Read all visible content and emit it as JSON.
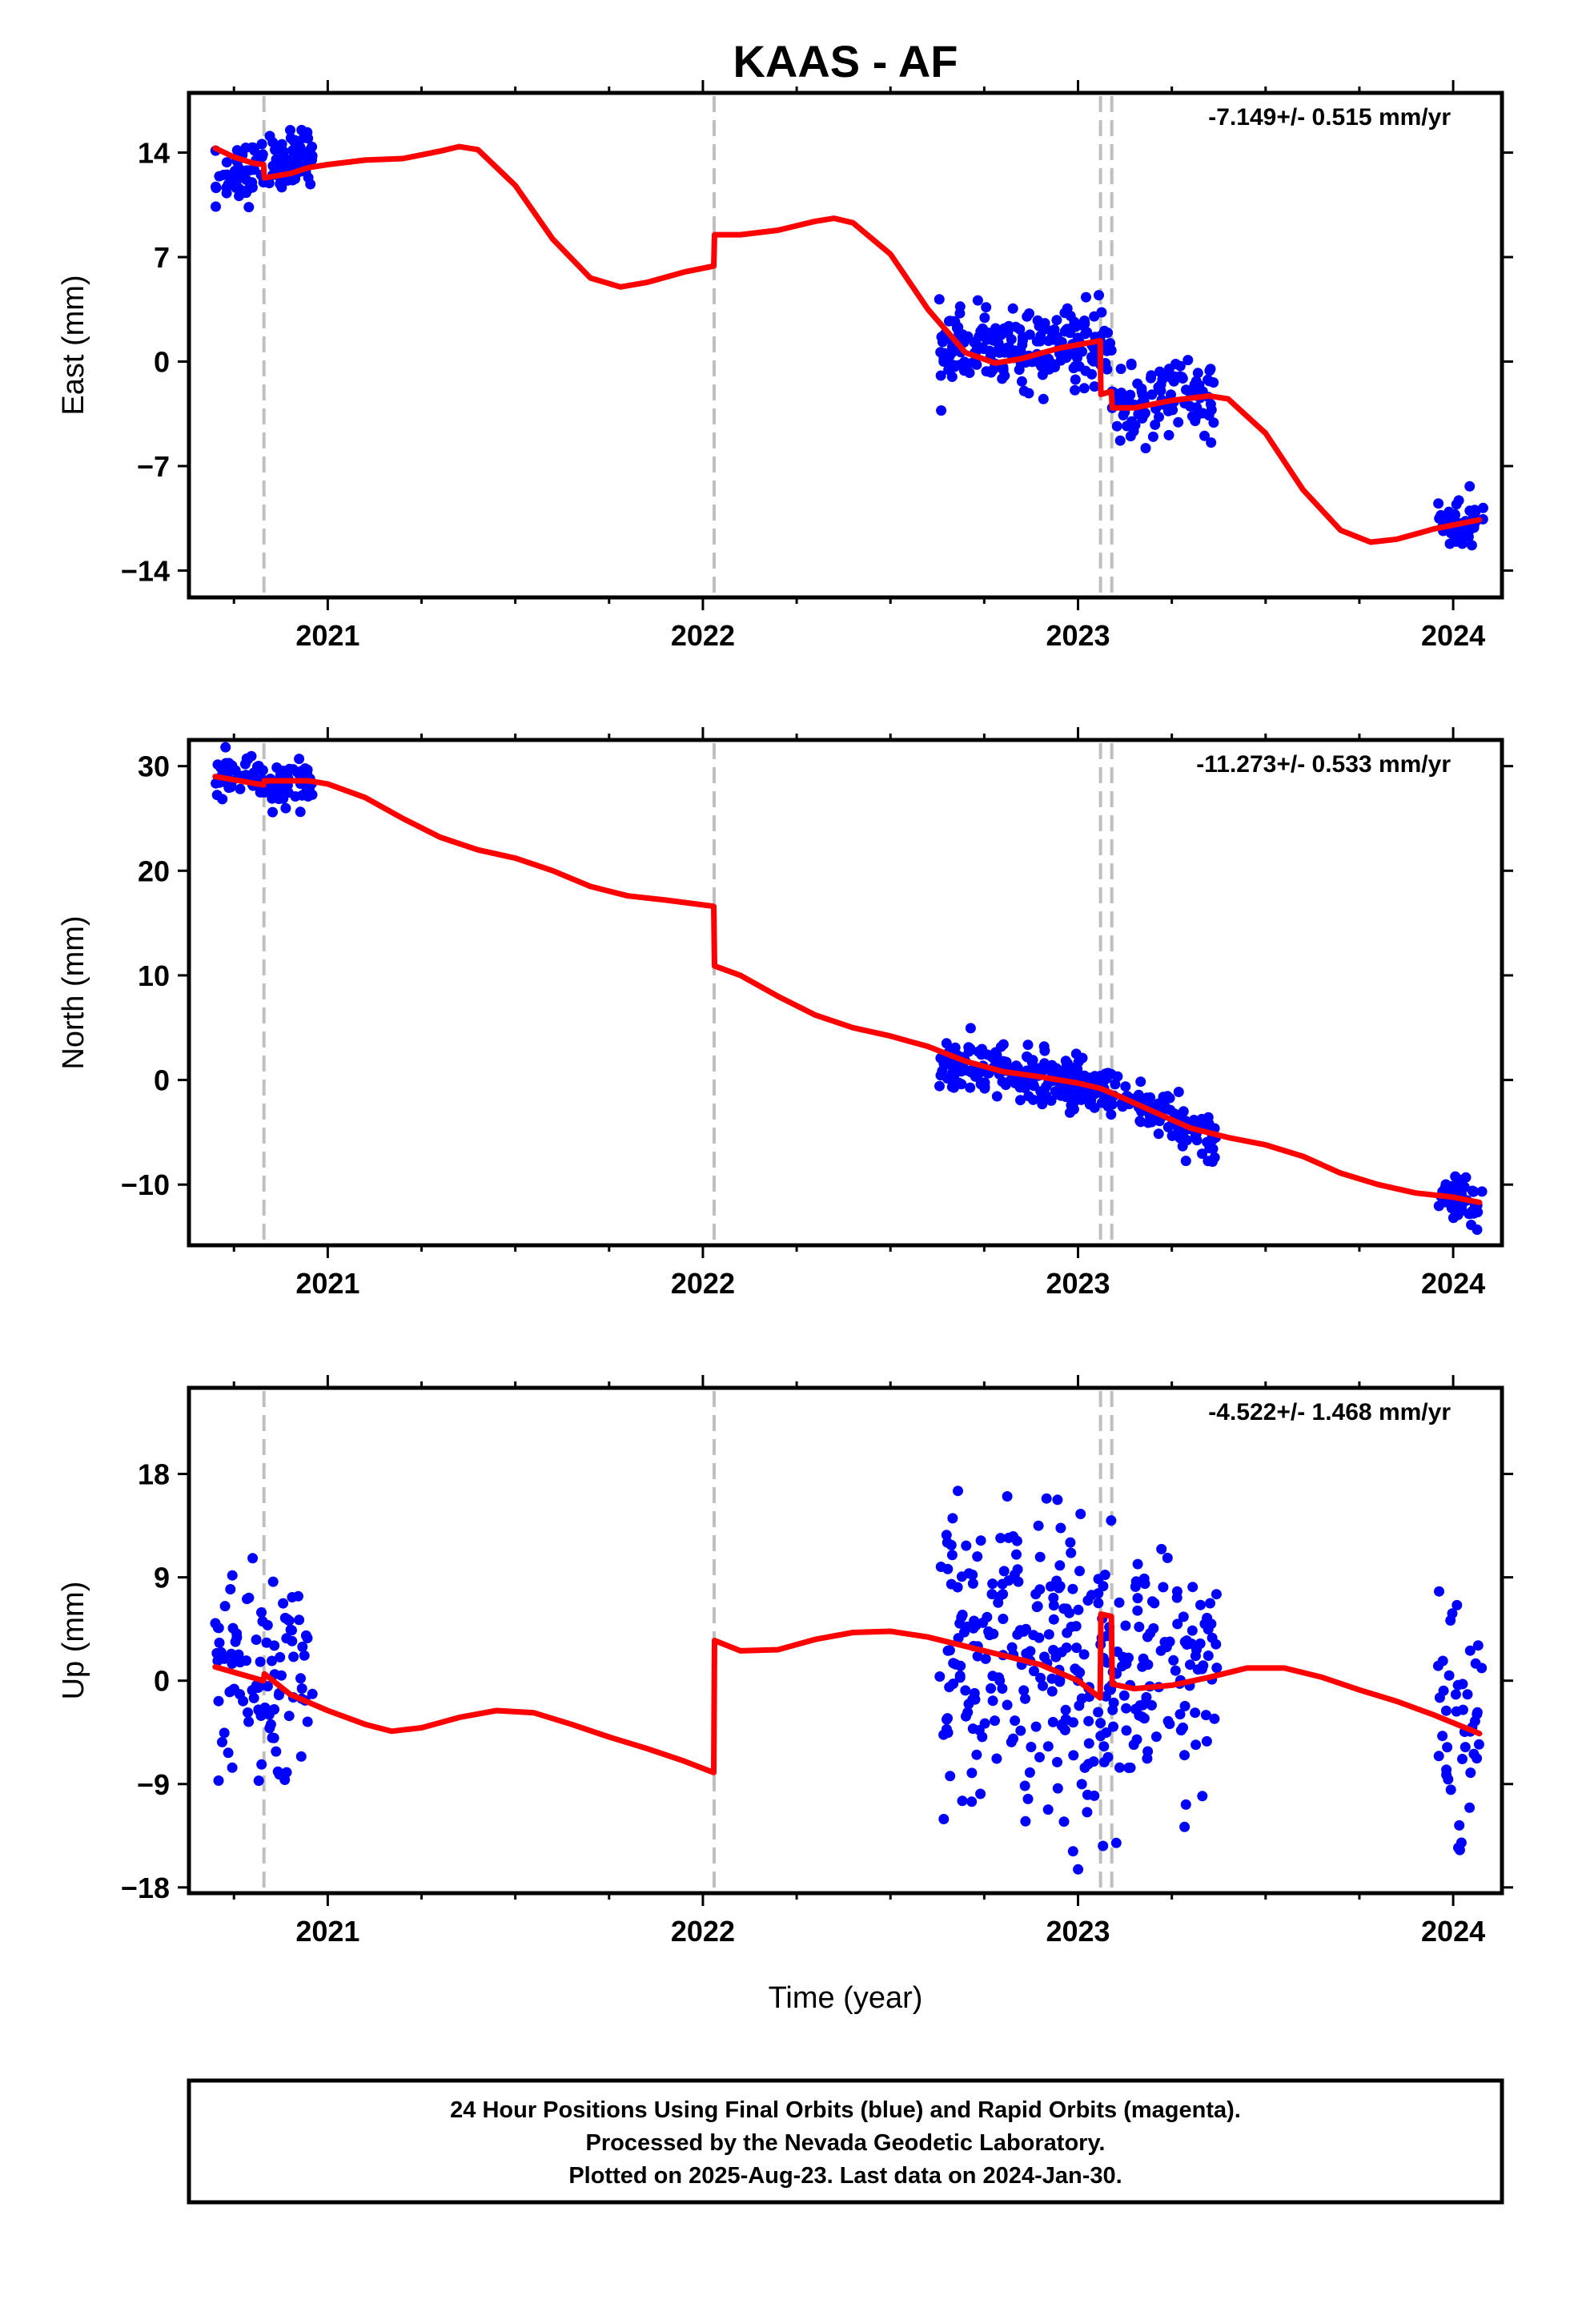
{
  "title": "KAAS - AF",
  "xlabel": "Time (year)",
  "footer": {
    "lines": [
      "24 Hour Positions Using Final Orbits (blue) and Rapid Orbits (magenta).",
      "Processed by the Nevada Geodetic Laboratory.",
      "Plotted on 2025-Aug-23. Last data on 2024-Jan-30."
    ]
  },
  "colors": {
    "data_points": "#0000ff",
    "model_fit": "#ff0000",
    "event_lines": "#bfbfbf",
    "frame": "#000000"
  },
  "chart_data": [
    {
      "type": "scatter",
      "panel": "east",
      "ylabel": "East (mm)",
      "rate_label": "-7.149+/- 0.515 mm/yr",
      "xlim": [
        2020.63,
        2024.13
      ],
      "ylim": [
        -15.8,
        18.0
      ],
      "yticks": [
        -14,
        -7,
        0,
        7,
        14
      ],
      "ytick_labels": [
        "−14",
        "−7",
        "0",
        "7",
        "14"
      ],
      "xticks": [
        2021,
        2022,
        2023,
        2024
      ],
      "xtick_labels": [
        "2021",
        "2022",
        "2023",
        "2024"
      ],
      "event_lines_x": [
        2020.83,
        2022.03,
        2023.06,
        2023.09
      ],
      "model": [
        [
          2020.7,
          14.3
        ],
        [
          2020.75,
          13.7
        ],
        [
          2020.8,
          13.3
        ],
        [
          2020.829,
          13.2
        ],
        [
          2020.831,
          12.3
        ],
        [
          2020.9,
          12.6
        ],
        [
          2020.95,
          13.0
        ],
        [
          2021.0,
          13.2
        ],
        [
          2021.1,
          13.5
        ],
        [
          2021.2,
          13.6
        ],
        [
          2021.3,
          14.1
        ],
        [
          2021.35,
          14.4
        ],
        [
          2021.4,
          14.2
        ],
        [
          2021.5,
          11.8
        ],
        [
          2021.6,
          8.2
        ],
        [
          2021.7,
          5.6
        ],
        [
          2021.78,
          5.0
        ],
        [
          2021.85,
          5.3
        ],
        [
          2021.95,
          6.0
        ],
        [
          2022.029,
          6.4
        ],
        [
          2022.031,
          8.5
        ],
        [
          2022.1,
          8.5
        ],
        [
          2022.2,
          8.8
        ],
        [
          2022.3,
          9.4
        ],
        [
          2022.35,
          9.6
        ],
        [
          2022.4,
          9.3
        ],
        [
          2022.5,
          7.2
        ],
        [
          2022.6,
          3.5
        ],
        [
          2022.7,
          0.6
        ],
        [
          2022.78,
          -0.1
        ],
        [
          2022.85,
          0.2
        ],
        [
          2022.95,
          0.9
        ],
        [
          2023.059,
          1.4
        ],
        [
          2023.061,
          -2.2
        ],
        [
          2023.089,
          -2.0
        ],
        [
          2023.091,
          -3.1
        ],
        [
          2023.15,
          -3.1
        ],
        [
          2023.25,
          -2.6
        ],
        [
          2023.35,
          -2.3
        ],
        [
          2023.4,
          -2.5
        ],
        [
          2023.5,
          -4.8
        ],
        [
          2023.6,
          -8.6
        ],
        [
          2023.7,
          -11.3
        ],
        [
          2023.78,
          -12.1
        ],
        [
          2023.85,
          -11.9
        ],
        [
          2023.95,
          -11.2
        ],
        [
          2024.07,
          -10.6
        ]
      ],
      "clusters": [
        {
          "x": [
            2020.7,
            2020.96
          ],
          "y": [
            12.0,
            14.2
          ],
          "n": 110,
          "sd": 1.0
        },
        {
          "x": [
            2022.63,
            2023.09
          ],
          "y": [
            0.9,
            1.0
          ],
          "n": 230,
          "sd": 1.2
        },
        {
          "x": [
            2023.09,
            2023.37
          ],
          "y": [
            -3.2,
            -2.3
          ],
          "n": 110,
          "sd": 1.2
        },
        {
          "x": [
            2023.96,
            2024.08
          ],
          "y": [
            -11.0,
            -10.5
          ],
          "n": 45,
          "sd": 1.2
        }
      ]
    },
    {
      "type": "scatter",
      "panel": "north",
      "ylabel": "North (mm)",
      "rate_label": "-11.273+/- 0.533 mm/yr",
      "xlim": [
        2020.63,
        2024.13
      ],
      "ylim": [
        -15.8,
        32.5
      ],
      "yticks": [
        -10,
        0,
        10,
        20,
        30
      ],
      "ytick_labels": [
        "−10",
        "0",
        "10",
        "20",
        "30"
      ],
      "xticks": [
        2021,
        2022,
        2023,
        2024
      ],
      "xtick_labels": [
        "2021",
        "2022",
        "2023",
        "2024"
      ],
      "event_lines_x": [
        2020.83,
        2022.03,
        2023.06,
        2023.09
      ],
      "model": [
        [
          2020.7,
          29.0
        ],
        [
          2020.829,
          28.2
        ],
        [
          2020.831,
          28.6
        ],
        [
          2020.95,
          28.6
        ],
        [
          2021.0,
          28.3
        ],
        [
          2021.1,
          27.0
        ],
        [
          2021.2,
          25.0
        ],
        [
          2021.3,
          23.2
        ],
        [
          2021.4,
          22.0
        ],
        [
          2021.5,
          21.2
        ],
        [
          2021.6,
          20.0
        ],
        [
          2021.7,
          18.5
        ],
        [
          2021.8,
          17.6
        ],
        [
          2021.9,
          17.2
        ],
        [
          2022.029,
          16.6
        ],
        [
          2022.031,
          10.9
        ],
        [
          2022.1,
          10.0
        ],
        [
          2022.2,
          8.0
        ],
        [
          2022.3,
          6.2
        ],
        [
          2022.4,
          5.0
        ],
        [
          2022.5,
          4.2
        ],
        [
          2022.6,
          3.2
        ],
        [
          2022.7,
          1.8
        ],
        [
          2022.8,
          0.8
        ],
        [
          2022.9,
          0.3
        ],
        [
          2023.0,
          -0.3
        ],
        [
          2023.059,
          -0.8
        ],
        [
          2023.1,
          -1.4
        ],
        [
          2023.2,
          -3.0
        ],
        [
          2023.3,
          -4.6
        ],
        [
          2023.4,
          -5.5
        ],
        [
          2023.5,
          -6.2
        ],
        [
          2023.6,
          -7.3
        ],
        [
          2023.7,
          -8.9
        ],
        [
          2023.8,
          -10.0
        ],
        [
          2023.9,
          -10.8
        ],
        [
          2024.0,
          -11.2
        ],
        [
          2024.07,
          -11.7
        ]
      ],
      "clusters": [
        {
          "x": [
            2020.7,
            2020.96
          ],
          "y": [
            28.8,
            28.2
          ],
          "n": 110,
          "sd": 1.0
        },
        {
          "x": [
            2022.63,
            2023.09
          ],
          "y": [
            1.6,
            -0.8
          ],
          "n": 230,
          "sd": 1.2
        },
        {
          "x": [
            2023.09,
            2023.37
          ],
          "y": [
            -1.2,
            -5.6
          ],
          "n": 110,
          "sd": 1.2
        },
        {
          "x": [
            2023.96,
            2024.08
          ],
          "y": [
            -11.0,
            -11.8
          ],
          "n": 45,
          "sd": 1.0
        }
      ]
    },
    {
      "type": "scatter",
      "panel": "up",
      "ylabel": "Up (mm)",
      "rate_label": "-4.522+/- 1.468 mm/yr",
      "xlim": [
        2020.63,
        2024.13
      ],
      "ylim": [
        -18.5,
        25.5
      ],
      "yticks": [
        -18,
        -9,
        0,
        9,
        18
      ],
      "ytick_labels": [
        "−18",
        "−9",
        "0",
        "9",
        "18"
      ],
      "xticks": [
        2021,
        2022,
        2023,
        2024
      ],
      "xtick_labels": [
        "2021",
        "2022",
        "2023",
        "2024"
      ],
      "event_lines_x": [
        2020.83,
        2022.03,
        2023.06,
        2023.09
      ],
      "model": [
        [
          2020.7,
          1.2
        ],
        [
          2020.829,
          0.0
        ],
        [
          2020.831,
          0.6
        ],
        [
          2020.9,
          -1.2
        ],
        [
          2021.0,
          -2.6
        ],
        [
          2021.1,
          -3.8
        ],
        [
          2021.17,
          -4.4
        ],
        [
          2021.25,
          -4.1
        ],
        [
          2021.35,
          -3.2
        ],
        [
          2021.45,
          -2.6
        ],
        [
          2021.55,
          -2.8
        ],
        [
          2021.65,
          -3.8
        ],
        [
          2021.75,
          -4.9
        ],
        [
          2021.85,
          -5.9
        ],
        [
          2021.95,
          -7.0
        ],
        [
          2022.029,
          -8.0
        ],
        [
          2022.031,
          3.5
        ],
        [
          2022.1,
          2.6
        ],
        [
          2022.2,
          2.7
        ],
        [
          2022.3,
          3.6
        ],
        [
          2022.4,
          4.2
        ],
        [
          2022.5,
          4.3
        ],
        [
          2022.6,
          3.8
        ],
        [
          2022.7,
          3.0
        ],
        [
          2022.8,
          2.2
        ],
        [
          2022.9,
          1.4
        ],
        [
          2023.0,
          0.0
        ],
        [
          2023.059,
          -1.5
        ],
        [
          2023.061,
          5.8
        ],
        [
          2023.089,
          5.6
        ],
        [
          2023.091,
          -0.3
        ],
        [
          2023.15,
          -0.7
        ],
        [
          2023.25,
          -0.4
        ],
        [
          2023.35,
          0.3
        ],
        [
          2023.45,
          1.1
        ],
        [
          2023.55,
          1.1
        ],
        [
          2023.65,
          0.3
        ],
        [
          2023.75,
          -0.8
        ],
        [
          2023.85,
          -1.8
        ],
        [
          2023.95,
          -3.0
        ],
        [
          2024.07,
          -4.6
        ]
      ],
      "clusters": [
        {
          "x": [
            2020.7,
            2020.96
          ],
          "y": [
            0.5,
            -2.0
          ],
          "n": 100,
          "sd": 5.0
        },
        {
          "x": [
            2022.63,
            2023.09
          ],
          "y": [
            3.0,
            0.0
          ],
          "n": 230,
          "sd": 6.5
        },
        {
          "x": [
            2023.09,
            2023.37
          ],
          "y": [
            0.0,
            0.5
          ],
          "n": 110,
          "sd": 5.0
        },
        {
          "x": [
            2023.96,
            2024.08
          ],
          "y": [
            -2.0,
            -4.0
          ],
          "n": 45,
          "sd": 5.5
        }
      ]
    }
  ]
}
